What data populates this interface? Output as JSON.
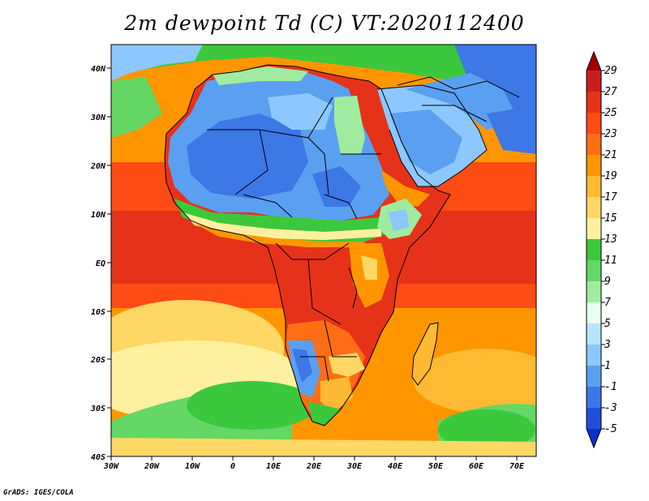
{
  "title": "2m dewpoint Td (C) VT:2020112400",
  "credit": "GrADS: IGES/COLA",
  "map": {
    "lon_ticks": [
      "30W",
      "20W",
      "10W",
      "0",
      "10E",
      "20E",
      "30E",
      "40E",
      "50E",
      "60E",
      "70E"
    ],
    "lat_ticks": [
      "40N",
      "30N",
      "20N",
      "10N",
      "EQ",
      "10S",
      "20S",
      "30S",
      "40S"
    ],
    "lon_range": [
      -30,
      75
    ],
    "lat_range": [
      -40,
      45
    ]
  },
  "colorbar": {
    "levels": [
      "29",
      "27",
      "25",
      "23",
      "21",
      "19",
      "17",
      "15",
      "13",
      "11",
      "9",
      "7",
      "5",
      "3",
      "1",
      "-1",
      "-3",
      "-5"
    ],
    "colors": {
      "c1": "#a00000",
      "c2": "#c81e1e",
      "c3": "#e63219",
      "c4": "#ff4b14",
      "c5": "#ff6e14",
      "c6": "#ff9600",
      "c7": "#ffb932",
      "c8": "#ffd764",
      "c9": "#fff0a0",
      "c10": "#3cc83c",
      "c11": "#64d764",
      "c12": "#a0eba0",
      "c13": "#e6fff0",
      "c14": "#b4e6ff",
      "c15": "#8cc8ff",
      "c16": "#5aa0f0",
      "c17": "#3c78e6",
      "c18": "#1e50dc",
      "c19": "#0a32c8"
    }
  }
}
